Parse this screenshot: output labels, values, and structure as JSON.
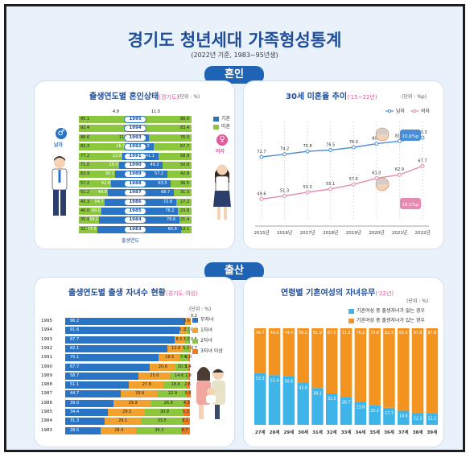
{
  "header": {
    "title": "경기도 청년세대 가족형성통계",
    "subtitle": "(2022년 기준, 1983~95년생)"
  },
  "sections": {
    "marriage": "혼인",
    "birth": "출산"
  },
  "panel1": {
    "title": "출생연도별 혼인상태",
    "title_sub": "(경기도)",
    "unit": "(단위 : %)",
    "axis_label": "출생연도",
    "male_label": "남자",
    "female_label": "여자",
    "legend": [
      "기혼",
      "미혼"
    ],
    "colors": {
      "married": "#2a74c6",
      "single": "#8cc63e"
    },
    "rows": [
      {
        "year": "1995",
        "male_single": 95.1,
        "male_married": 4.9,
        "female_married": 11.5,
        "female_single": 88.5
      },
      {
        "year": "1994",
        "male_single": 92.4,
        "male_married": 7.6,
        "female_married": 16.5,
        "female_single": 83.4
      },
      {
        "year": "1993",
        "male_single": 88.6,
        "male_married": 11.4,
        "female_married": 24.0,
        "female_single": 76.0
      },
      {
        "year": "1992",
        "male_single": 83.3,
        "male_married": 16.7,
        "female_married": 32.3,
        "female_single": 67.7
      },
      {
        "year": "1991",
        "male_single": 77.2,
        "male_married": 22.8,
        "female_married": 41.1,
        "female_single": 58.9
      },
      {
        "year": "1990",
        "male_single": 71.0,
        "male_married": 29.0,
        "female_married": 49.2,
        "female_single": 50.8
      },
      {
        "year": "1989",
        "male_single": 63.9,
        "male_married": 36.1,
        "female_married": 57.2,
        "female_single": 42.8
      },
      {
        "year": "1988",
        "male_single": 57.2,
        "male_married": 42.8,
        "female_married": 63.5,
        "female_single": 36.5
      },
      {
        "year": "1987",
        "male_single": 51.2,
        "male_married": 48.8,
        "female_married": 68.7,
        "female_single": 31.3
      },
      {
        "year": "1986",
        "male_single": 45.3,
        "male_married": 54.7,
        "female_married": 72.8,
        "female_single": 27.2
      },
      {
        "year": "1985",
        "male_single": 40.0,
        "male_married": 60.0,
        "female_married": 76.2,
        "female_single": 23.8
      },
      {
        "year": "1984",
        "male_single": 35.9,
        "male_married": 64.1,
        "female_married": 78.6,
        "female_single": 21.4
      },
      {
        "year": "1983",
        "male_single": 32.5,
        "male_married": 67.5,
        "female_married": 80.9,
        "female_single": 19.1
      }
    ]
  },
  "panel2": {
    "title": "30세 미혼율 추이",
    "title_sub": "('15~22년)",
    "unit": "(단위 : %p)",
    "male_change": "10.6%p",
    "female_change": "18.1%p"
  },
  "panel3": {
    "title": "출생연도별 출생 자녀수 현황",
    "title_sub": "(경기도 여성)",
    "unit": "(단위 : %)",
    "legend": [
      "무자녀",
      "1자녀",
      "2자녀",
      "3자녀 이상"
    ],
    "colors": [
      "#2a74c6",
      "#f2a12f",
      "#8cc63e",
      "#f07b1c"
    ],
    "rows": [
      {
        "year": "1995",
        "vals": [
          96.2,
          3.6,
          0,
          0.2
        ]
      },
      {
        "year": "1994",
        "vals": [
          91.6,
          5.7,
          2.3,
          0.4
        ]
      },
      {
        "year": "1993",
        "vals": [
          87.7,
          8.5,
          3.2,
          0.5
        ]
      },
      {
        "year": "1992",
        "vals": [
          82.1,
          12.8,
          5.2,
          0.7
        ]
      },
      {
        "year": "1991",
        "vals": [
          75.1,
          16.5,
          7.4,
          1.0
        ]
      },
      {
        "year": "1990",
        "vals": [
          67.7,
          20.6,
          10.3,
          1.4
        ]
      },
      {
        "year": "1989",
        "vals": [
          58.7,
          25.0,
          14.6,
          1.9
        ]
      },
      {
        "year": "1988",
        "vals": [
          51.1,
          27.8,
          18.6,
          2.6
        ]
      },
      {
        "year": "1987",
        "vals": [
          44.7,
          29.6,
          22.9,
          3.4
        ]
      },
      {
        "year": "1986",
        "vals": [
          39.0,
          29.9,
          26.9,
          4.3
        ]
      },
      {
        "year": "1985",
        "vals": [
          34.4,
          29.5,
          30.8,
          5.3
        ]
      },
      {
        "year": "1984",
        "vals": [
          31.3,
          29.1,
          33.5,
          6.1
        ]
      },
      {
        "year": "1983",
        "vals": [
          28.5,
          28.4,
          36.3,
          6.7
        ]
      }
    ]
  },
  "panel4": {
    "title": "연령별 기혼여성의 자녀유무",
    "title_sub": "('22년)",
    "unit": "(단위 : %)",
    "legend": [
      "기혼여성 중 출생자녀가 없는 경우",
      "기혼여성 중 출생자녀가 있는 경우"
    ],
    "colors": [
      "#3fb4e8",
      "#f2941f"
    ]
  },
  "chart_data": [
    {
      "type": "bar",
      "title": "출생연도별 혼인상태",
      "subtitle": "(경기도)",
      "xlabel": "출생연도",
      "categories": [
        "1995",
        "1994",
        "1993",
        "1992",
        "1991",
        "1990",
        "1989",
        "1988",
        "1987",
        "1986",
        "1985",
        "1984",
        "1983"
      ],
      "series": [
        {
          "name": "남자 미혼",
          "values": [
            95.1,
            92.4,
            88.6,
            83.3,
            77.2,
            71.0,
            63.9,
            57.2,
            51.2,
            45.3,
            40.0,
            35.9,
            32.5
          ]
        },
        {
          "name": "남자 기혼",
          "values": [
            4.9,
            7.6,
            11.4,
            16.7,
            22.8,
            29.0,
            36.1,
            42.8,
            48.8,
            54.7,
            60.0,
            64.1,
            67.5
          ]
        },
        {
          "name": "여자 기혼",
          "values": [
            11.5,
            16.5,
            24.0,
            32.3,
            41.1,
            49.2,
            57.2,
            63.5,
            68.7,
            72.8,
            76.2,
            78.6,
            80.9
          ]
        },
        {
          "name": "여자 미혼",
          "values": [
            88.5,
            83.4,
            76.0,
            67.7,
            58.9,
            50.8,
            42.8,
            36.5,
            31.3,
            27.2,
            23.8,
            21.4,
            19.1
          ]
        }
      ]
    },
    {
      "type": "line",
      "title": "30세 미혼율 추이",
      "subtitle": "('15~22년)",
      "x": [
        "2015년",
        "2016년",
        "2017년",
        "2018년",
        "2019년",
        "2020년",
        "2021년",
        "2022년"
      ],
      "ylim": [
        40,
        90
      ],
      "series": [
        {
          "name": "남자",
          "values": [
            72.7,
            74.2,
            75.8,
            76.5,
            78.0,
            80.0,
            81.4,
            83.3
          ]
        },
        {
          "name": "여자",
          "values": [
            49.6,
            51.3,
            53.3,
            55.1,
            57.6,
            61.0,
            62.9,
            67.7
          ]
        }
      ]
    },
    {
      "type": "bar",
      "title": "출생연도별 출생 자녀수 현황",
      "subtitle": "(경기도 여성)",
      "categories": [
        "1995",
        "1994",
        "1993",
        "1992",
        "1991",
        "1990",
        "1989",
        "1988",
        "1987",
        "1986",
        "1985",
        "1984",
        "1983"
      ],
      "series": [
        {
          "name": "무자녀",
          "values": [
            96.2,
            91.6,
            87.7,
            82.1,
            75.1,
            67.7,
            58.7,
            51.1,
            44.7,
            39.0,
            34.4,
            31.3,
            28.5
          ]
        },
        {
          "name": "1자녀",
          "values": [
            3.6,
            5.7,
            8.5,
            12.8,
            16.5,
            20.6,
            25.0,
            27.8,
            29.6,
            29.9,
            29.5,
            29.1,
            28.4
          ]
        },
        {
          "name": "2자녀",
          "values": [
            0,
            2.3,
            3.2,
            5.2,
            7.4,
            10.3,
            14.6,
            18.6,
            22.9,
            26.9,
            30.8,
            33.5,
            36.3
          ]
        },
        {
          "name": "3자녀 이상",
          "values": [
            0.2,
            0.4,
            0.5,
            0.7,
            1.0,
            1.4,
            1.9,
            2.6,
            3.4,
            4.3,
            5.3,
            6.1,
            6.7
          ]
        }
      ]
    },
    {
      "type": "bar",
      "title": "연령별 기혼여성의 자녀유무",
      "subtitle": "('22년)",
      "categories": [
        "27세",
        "28세",
        "29세",
        "30세",
        "31세",
        "32세",
        "33세",
        "34세",
        "35세",
        "36세",
        "37세",
        "38세",
        "39세"
      ],
      "series": [
        {
          "name": "기혼여성 중 출생자녀가 없는 경우",
          "values": [
            53.3,
            51.4,
            50.6,
            43.8,
            38.1,
            32.5,
            28.7,
            23.8,
            20.2,
            17.7,
            14.6,
            12.2,
            12.2
          ]
        },
        {
          "name": "기혼여성 중 출생자녀가 있는 경우",
          "values": [
            46.7,
            48.6,
            49.4,
            56.2,
            61.9,
            67.5,
            71.3,
            76.2,
            79.8,
            82.3,
            85.4,
            87.8,
            87.8
          ]
        }
      ]
    }
  ]
}
